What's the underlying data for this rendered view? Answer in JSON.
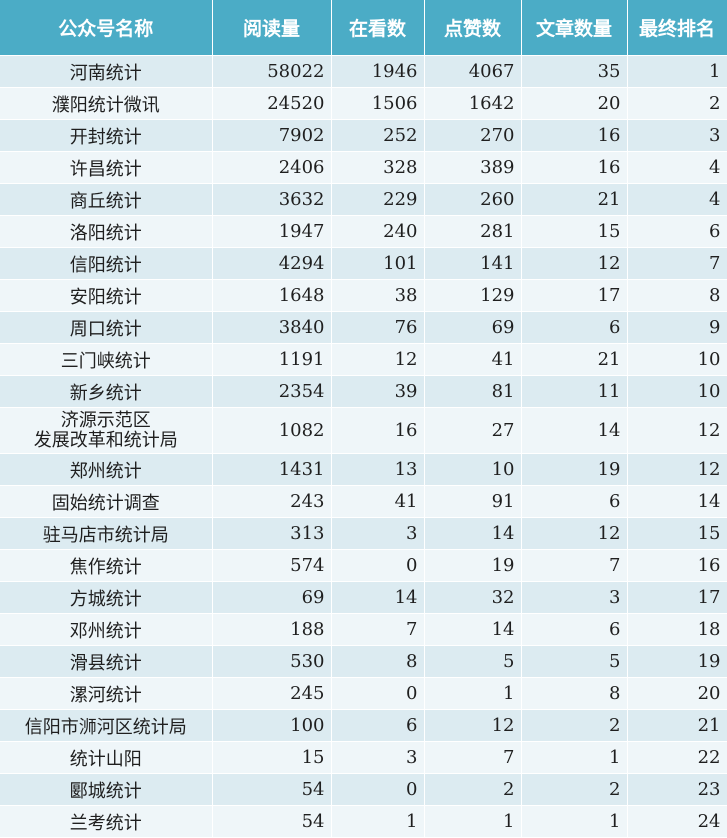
{
  "colors": {
    "header_bg": "#4bacc6",
    "header_text": "#ffffff",
    "row_odd_bg": "#dcebf1",
    "row_even_bg": "#eff6f9"
  },
  "headers": [
    "公众号名称",
    "阅读量",
    "在看数",
    "点赞数",
    "文章数量",
    "最终排名"
  ],
  "rows": [
    [
      "河南统计",
      "58022",
      "1946",
      "4067",
      "35",
      "1"
    ],
    [
      "濮阳统计微讯",
      "24520",
      "1506",
      "1642",
      "20",
      "2"
    ],
    [
      "开封统计",
      "7902",
      "252",
      "270",
      "16",
      "3"
    ],
    [
      "许昌统计",
      "2406",
      "328",
      "389",
      "16",
      "4"
    ],
    [
      "商丘统计",
      "3632",
      "229",
      "260",
      "21",
      "4"
    ],
    [
      "洛阳统计",
      "1947",
      "240",
      "281",
      "15",
      "6"
    ],
    [
      "信阳统计",
      "4294",
      "101",
      "141",
      "12",
      "7"
    ],
    [
      "安阳统计",
      "1648",
      "38",
      "129",
      "17",
      "8"
    ],
    [
      "周口统计",
      "3840",
      "76",
      "69",
      "6",
      "9"
    ],
    [
      "三门峡统计",
      "1191",
      "12",
      "41",
      "21",
      "10"
    ],
    [
      "新乡统计",
      "2354",
      "39",
      "81",
      "11",
      "10"
    ],
    [
      "济源示范区\n发展改革和统计局",
      "1082",
      "16",
      "27",
      "14",
      "12"
    ],
    [
      "郑州统计",
      "1431",
      "13",
      "10",
      "19",
      "12"
    ],
    [
      "固始统计调查",
      "243",
      "41",
      "91",
      "6",
      "14"
    ],
    [
      "驻马店市统计局",
      "313",
      "3",
      "14",
      "12",
      "15"
    ],
    [
      "焦作统计",
      "574",
      "0",
      "19",
      "7",
      "16"
    ],
    [
      "方城统计",
      "69",
      "14",
      "32",
      "3",
      "17"
    ],
    [
      "邓州统计",
      "188",
      "7",
      "14",
      "6",
      "18"
    ],
    [
      "滑县统计",
      "530",
      "8",
      "5",
      "5",
      "19"
    ],
    [
      "漯河统计",
      "245",
      "0",
      "1",
      "8",
      "20"
    ],
    [
      "信阳市浉河区统计局",
      "100",
      "6",
      "12",
      "2",
      "21"
    ],
    [
      "统计山阳",
      "15",
      "3",
      "7",
      "1",
      "22"
    ],
    [
      "郾城统计",
      "54",
      "0",
      "2",
      "2",
      "23"
    ],
    [
      "兰考统计",
      "54",
      "1",
      "1",
      "1",
      "24"
    ]
  ]
}
